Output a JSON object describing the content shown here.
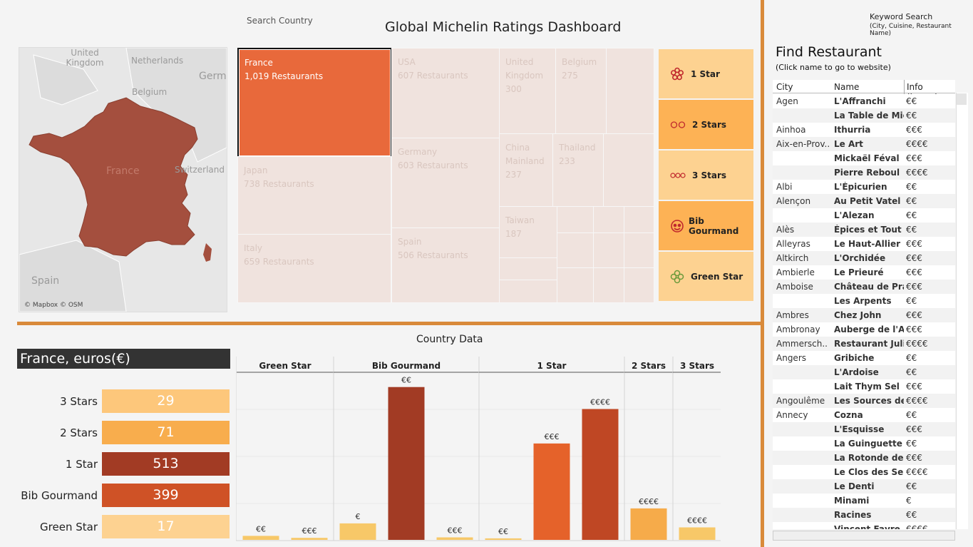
{
  "header": {
    "search_label": "Search Country",
    "title": "Global Michelin Ratings Dashboard"
  },
  "map": {
    "labels": [
      "United Kingdom",
      "Netherlands",
      "Germ",
      "Belgium",
      "France",
      "Switzerland",
      "Spain"
    ],
    "attribution": "© Mapbox © OSM",
    "highlight_color": "#a44f3e"
  },
  "treemap": [
    {
      "name": "France",
      "sub": "1,019 Restaurants",
      "active": true
    },
    {
      "name": "USA",
      "sub": "607 Restaurants"
    },
    {
      "name": "Japan",
      "sub": "738 Restaurants"
    },
    {
      "name": "Germany",
      "sub": "603 Restaurants"
    },
    {
      "name": "Italy",
      "sub": "659 Restaurants"
    },
    {
      "name": "Spain",
      "sub": "506 Restaurants"
    },
    {
      "name": "United Kingdom",
      "sub": "300"
    },
    {
      "name": "Belgium",
      "sub": "275"
    },
    {
      "name": "China Mainland",
      "sub": "237"
    },
    {
      "name": "Thailand",
      "sub": "233"
    },
    {
      "name": "Taiwan",
      "sub": "187"
    }
  ],
  "legend": [
    {
      "label": "1 Star",
      "icon": "flower-1-icon",
      "color": "#fdd291"
    },
    {
      "label": "2 Stars",
      "icon": "flower-2-icon",
      "color": "#fdb255"
    },
    {
      "label": "3 Stars",
      "icon": "flower-3-icon",
      "color": "#fdd291"
    },
    {
      "label": "Bib Gourmand",
      "icon": "bibendum-icon",
      "color": "#fdb255"
    },
    {
      "label": "Green Star",
      "icon": "clover-icon",
      "color": "#fdd291"
    }
  ],
  "right": {
    "keyword_label": "Keyword Search",
    "keyword_sub": "(City, Cuisine, Restaurant Name)",
    "title": "Find Restaurant",
    "subtitle": "(Click name to go to website)",
    "columns": [
      "City",
      "Name",
      "Info (hover)"
    ],
    "rows": [
      [
        "Agen",
        "L'Affranchi",
        "€€"
      ],
      [
        "",
        "La Table de Mic..",
        "€€"
      ],
      [
        "Ainhoa",
        "Ithurria",
        "€€€"
      ],
      [
        "Aix-en-Prov..",
        "Le Art",
        "€€€€"
      ],
      [
        "",
        "Mickaël Féval",
        "€€€"
      ],
      [
        "",
        "Pierre Reboul",
        "€€€€"
      ],
      [
        "Albi",
        "L'Épicurien",
        "€€"
      ],
      [
        "Alençon",
        "Au Petit Vatel",
        "€€"
      ],
      [
        "",
        "L'Alezan",
        "€€"
      ],
      [
        "Alès",
        "Épices et Tout",
        "€€"
      ],
      [
        "Alleyras",
        "Le Haut-Allier",
        "€€€"
      ],
      [
        "Altkirch",
        "L'Orchidée",
        "€€€"
      ],
      [
        "Ambierle",
        "Le Prieuré",
        "€€€"
      ],
      [
        "Amboise",
        "Château de Pray",
        "€€€"
      ],
      [
        "",
        "Les Arpents",
        "€€"
      ],
      [
        "Ambres",
        "Chez John",
        "€€€"
      ],
      [
        "Ambronay",
        "Auberge de l'Ab..",
        "€€€"
      ],
      [
        "Ammersch..",
        "Restaurant Juli..",
        "€€€€"
      ],
      [
        "Angers",
        "Gribiche",
        "€€"
      ],
      [
        "",
        "L'Ardoise",
        "€€"
      ],
      [
        "",
        "Lait Thym Sel",
        "€€€"
      ],
      [
        "Angoulême",
        "Les Sources de ..",
        "€€€€"
      ],
      [
        "Annecy",
        "Cozna",
        "€€"
      ],
      [
        "",
        "L'Esquisse",
        "€€€"
      ],
      [
        "",
        "La Guinguette d..",
        "€€"
      ],
      [
        "",
        "La Rotonde des ..",
        "€€€"
      ],
      [
        "",
        "Le Clos des Sens",
        "€€€€"
      ],
      [
        "",
        "Le Denti",
        "€€"
      ],
      [
        "",
        "Minami",
        "€"
      ],
      [
        "",
        "Racines",
        "€€"
      ],
      [
        "",
        "Vincent Favre F..",
        "€€€€"
      ]
    ]
  },
  "country": {
    "section_title": "Country Data",
    "currency_title": "France, euros(€)",
    "kpis": [
      {
        "label": "3 Stars",
        "value": "29",
        "color": "#fdc77b",
        "text_color": "#ffffff"
      },
      {
        "label": "2 Stars",
        "value": "71",
        "color": "#f8ad4d",
        "text_color": "#ffffff"
      },
      {
        "label": "1 Star",
        "value": "513",
        "color": "#a23b24",
        "text_color": "#ffffff"
      },
      {
        "label": "Bib Gourmand",
        "value": "399",
        "color": "#cf5226",
        "text_color": "#ffffff"
      },
      {
        "label": "Green Star",
        "value": "17",
        "color": "#fdd291",
        "text_color": "#ffffff"
      }
    ]
  },
  "chart_data": {
    "type": "bar",
    "title": "Country Data",
    "panels": [
      {
        "name": "Green Star",
        "categories": [
          "€€",
          "€€€"
        ],
        "values": [
          8,
          4
        ]
      },
      {
        "name": "Bib Gourmand",
        "categories": [
          "€",
          "€€",
          "€€€"
        ],
        "values": [
          33,
          306,
          5
        ]
      },
      {
        "name": "1 Star",
        "categories": [
          "€€",
          "€€€",
          "€€€€"
        ],
        "values": [
          3,
          193,
          262
        ]
      },
      {
        "name": "2 Stars",
        "categories": [
          "€€€€"
        ],
        "values": [
          63
        ]
      },
      {
        "name": "3 Stars",
        "categories": [
          "€€€€"
        ],
        "values": [
          25
        ]
      }
    ],
    "ylim": [
      0,
      327
    ],
    "bar_colors": {
      "€": "#f7c15b",
      "€€": "#f6c45a",
      "€€€": "#e5622a",
      "€€€€": "#bf4724"
    },
    "panel_colors": {
      "Green Star": "#f7c868",
      "Bib Gourmand": "#f7c868",
      "1 Star": "#e3612a",
      "2 Stars": "#f6ab4a",
      "3 Stars": "#f7c868"
    }
  }
}
